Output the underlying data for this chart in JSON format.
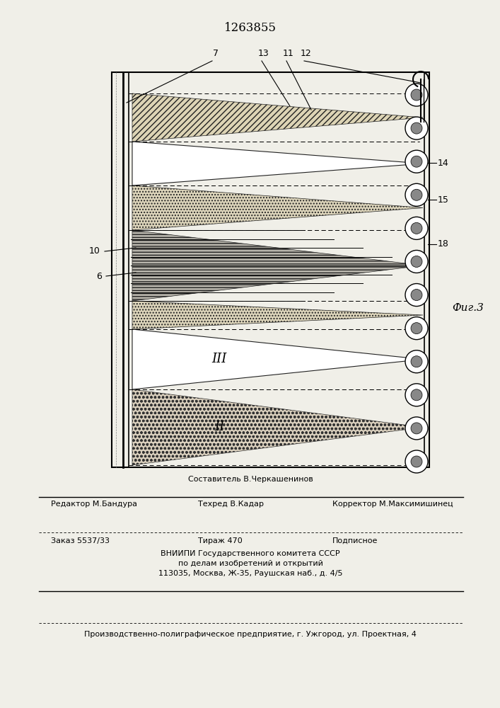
{
  "bg_color": "#f0efe8",
  "patent_number": "1263855",
  "fig_label": "Фиг.3",
  "footer": {
    "sestavitel": "Составитель В.Черкашенинов",
    "redaktor": "Редактор М.Бандура",
    "tehred": "Техред В.Кадар",
    "korrektor": "Корректор М.Максимишинец",
    "zakaz": "Заказ 5537/33",
    "tirazh": "Тираж 470",
    "podpisnoe": "Подписное",
    "vniip1": "ВНИИПИ Государственного комитета СССР",
    "vniip2": "по делам изобретений и открытий",
    "vniip3": "113035, Москва, Ж-35, Раушская наб., д. 4/5",
    "predpr": "Производственно-полиграфическое предприятие, г. Ужгород, ул. Проектная, 4"
  }
}
